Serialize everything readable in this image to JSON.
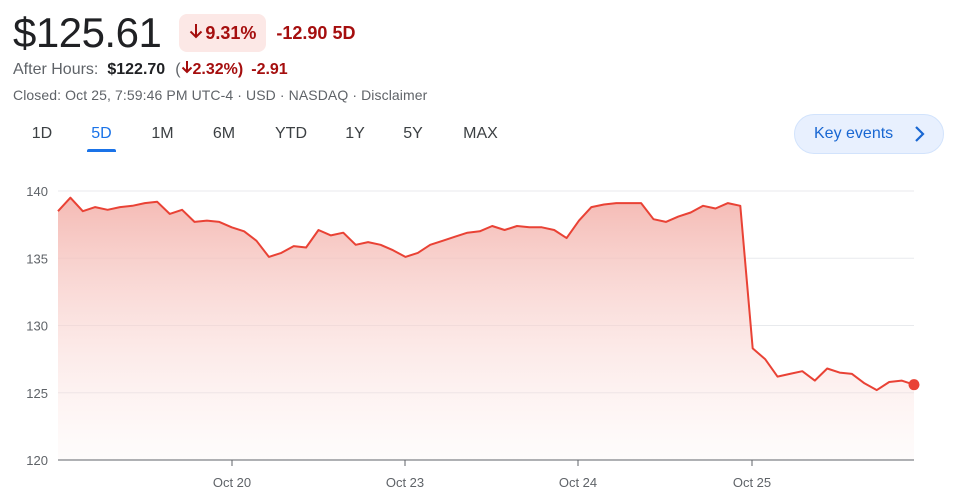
{
  "quote": {
    "price": "$125.61",
    "change_percent": "9.31%",
    "change_amount": "-12.90",
    "change_period": "5D",
    "direction": "down",
    "down_color": "#a50e0e"
  },
  "after_hours": {
    "label": "After Hours:",
    "price": "$122.70",
    "open_paren": "(",
    "change_percent": "2.32%)",
    "change_amount": "-2.91"
  },
  "closed_info": {
    "text": "Closed: Oct 25, 7:59:46 PM UTC-4 · USD · NASDAQ · Disclaimer"
  },
  "tabs": [
    {
      "label": "1D",
      "active": false
    },
    {
      "label": "5D",
      "active": true
    },
    {
      "label": "1M",
      "active": false
    },
    {
      "label": "6M",
      "active": false
    },
    {
      "label": "YTD",
      "active": false
    },
    {
      "label": "1Y",
      "active": false
    },
    {
      "label": "5Y",
      "active": false
    },
    {
      "label": "MAX",
      "active": false
    }
  ],
  "key_events": {
    "label": "Key events",
    "icon": "chevron-right-icon"
  },
  "chart_data": {
    "type": "area",
    "ylim": [
      120,
      140
    ],
    "yticks": [
      140,
      135,
      130,
      125,
      120
    ],
    "xtick_labels": [
      "Oct 20",
      "Oct 23",
      "Oct 24",
      "Oct 25"
    ],
    "grid": true,
    "line_color": "#e94235",
    "fill_color": "#f4b7b1",
    "series": [
      {
        "values": [
          138.5,
          139.5,
          138.5,
          138.8,
          138.6,
          138.8,
          138.9,
          139.1,
          139.2,
          138.3,
          138.6,
          137.7,
          137.8,
          137.7,
          137.3,
          137.0,
          136.3,
          135.1,
          135.4,
          135.9,
          135.8,
          137.1,
          136.7,
          136.9,
          136.0,
          136.2,
          136.0,
          135.6,
          135.1,
          135.4,
          136.0,
          136.3,
          136.6,
          136.9,
          137.0,
          137.4,
          137.1,
          137.4,
          137.3,
          137.3,
          137.1,
          136.5,
          137.8,
          138.8,
          139.0,
          139.1,
          139.1,
          139.1,
          137.9,
          137.7,
          138.1,
          138.4,
          138.9,
          138.7,
          139.1,
          138.9,
          128.3,
          127.5,
          126.2,
          126.4,
          126.6,
          125.9,
          126.8,
          126.5,
          126.4,
          125.7,
          125.2,
          125.8,
          125.9,
          125.6
        ]
      }
    ]
  }
}
